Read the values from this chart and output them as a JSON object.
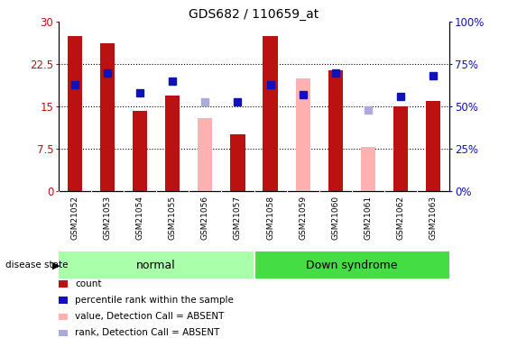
{
  "title": "GDS682 / 110659_at",
  "samples": [
    "GSM21052",
    "GSM21053",
    "GSM21054",
    "GSM21055",
    "GSM21056",
    "GSM21057",
    "GSM21058",
    "GSM21059",
    "GSM21060",
    "GSM21061",
    "GSM21062",
    "GSM21063"
  ],
  "bar_values": [
    27.5,
    26.3,
    14.3,
    17.0,
    null,
    10.0,
    27.5,
    null,
    21.5,
    null,
    15.0,
    16.0
  ],
  "bar_absent": [
    null,
    null,
    null,
    null,
    13.0,
    null,
    null,
    20.0,
    null,
    7.8,
    null,
    null
  ],
  "rank_values": [
    63,
    70,
    58,
    65,
    null,
    53,
    63,
    57,
    70,
    null,
    56,
    68
  ],
  "rank_absent": [
    null,
    null,
    null,
    null,
    53,
    null,
    null,
    null,
    null,
    48,
    null,
    null
  ],
  "ylim_left": [
    0,
    30
  ],
  "ylim_right": [
    0,
    100
  ],
  "yticks_left": [
    0,
    7.5,
    15,
    22.5,
    30
  ],
  "yticks_right": [
    0,
    25,
    50,
    75,
    100
  ],
  "ytick_labels_left": [
    "0",
    "7.5",
    "15",
    "22.5",
    "30"
  ],
  "ytick_labels_right": [
    "0%",
    "25%",
    "50%",
    "75%",
    "100%"
  ],
  "bar_color_present": "#BB1111",
  "bar_color_absent": "#FFB0B0",
  "rank_color_present": "#1111BB",
  "rank_color_absent": "#AAAADD",
  "group_normal_color": "#AAFFAA",
  "group_ds_color": "#44DD44",
  "gray_bg": "#D0D0D0",
  "legend_items": [
    {
      "label": "count",
      "color": "#BB1111"
    },
    {
      "label": "percentile rank within the sample",
      "color": "#1111BB"
    },
    {
      "label": "value, Detection Call = ABSENT",
      "color": "#FFB0B0"
    },
    {
      "label": "rank, Detection Call = ABSENT",
      "color": "#AAAADD"
    }
  ],
  "disease_state_label": "disease state",
  "bar_width": 0.45,
  "rank_marker_size": 5.5
}
